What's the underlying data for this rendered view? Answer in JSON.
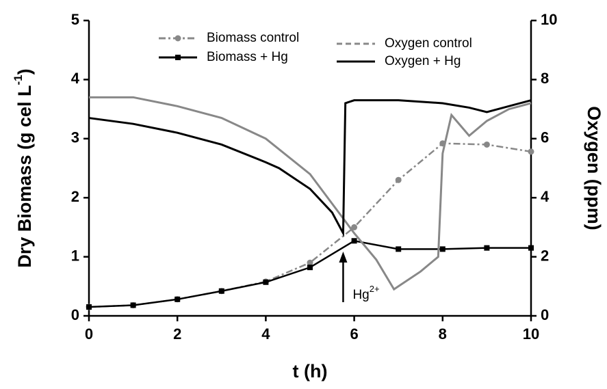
{
  "chart_data": {
    "type": "line",
    "xlabel": "t (h)",
    "ylabel": {
      "text": "Dry Biomass (g cel L",
      "superscript": "-1",
      "suffix": ")"
    },
    "y2label": "Oxygen (ppm)",
    "xlim": [
      0,
      10
    ],
    "xticks": [
      0,
      2,
      4,
      6,
      8,
      10
    ],
    "ylim": [
      0,
      5
    ],
    "yticks": [
      0,
      1,
      2,
      3,
      4,
      5
    ],
    "y2lim": [
      0,
      10
    ],
    "y2ticks": [
      0,
      2,
      4,
      6,
      8,
      10
    ],
    "annotation": {
      "text": "Hg",
      "superscript": "2+",
      "x": 5.75
    },
    "series": [
      {
        "name": "Biomass control",
        "color": "#888888",
        "style": "dashdot",
        "marker": "circle",
        "x": [
          0,
          1,
          2,
          3,
          4,
          5,
          6,
          7,
          8,
          9,
          10
        ],
        "values": [
          0.15,
          0.18,
          0.28,
          0.42,
          0.58,
          0.9,
          1.5,
          2.3,
          2.92,
          2.9,
          2.78
        ]
      },
      {
        "name": "Biomass  + Hg",
        "color": "#000000",
        "style": "solid",
        "marker": "square",
        "x": [
          0,
          1,
          2,
          3,
          4,
          5,
          6,
          7,
          8,
          9,
          10
        ],
        "values": [
          0.15,
          0.18,
          0.28,
          0.42,
          0.57,
          0.82,
          1.27,
          1.13,
          1.13,
          1.15,
          1.15
        ]
      },
      {
        "name": "Oxygen control",
        "color": "#888888",
        "style": "dash",
        "marker": "none",
        "axis": "y2",
        "x": [
          0,
          1,
          2,
          3,
          4,
          5,
          5.7,
          6,
          6.5,
          6.9,
          7,
          7.5,
          7.9,
          8,
          8.2,
          8.6,
          9,
          9.5,
          10
        ],
        "values": [
          7.4,
          7.4,
          7.1,
          6.7,
          6.0,
          4.8,
          3.4,
          2.8,
          1.9,
          0.9,
          1.0,
          1.5,
          2.0,
          5.5,
          6.8,
          6.1,
          6.6,
          7.0,
          7.2
        ]
      },
      {
        "name": "Oxygen + Hg",
        "color": "#000000",
        "style": "solid",
        "marker": "none",
        "axis": "y2",
        "x": [
          0,
          1,
          2,
          3,
          4,
          4.3,
          5,
          5.5,
          5.75,
          5.8,
          6,
          7,
          8,
          8.6,
          9,
          10
        ],
        "values": [
          6.7,
          6.5,
          6.2,
          5.8,
          5.2,
          5.0,
          4.3,
          3.5,
          2.8,
          7.2,
          7.3,
          7.3,
          7.2,
          7.05,
          6.9,
          7.3
        ]
      }
    ]
  }
}
